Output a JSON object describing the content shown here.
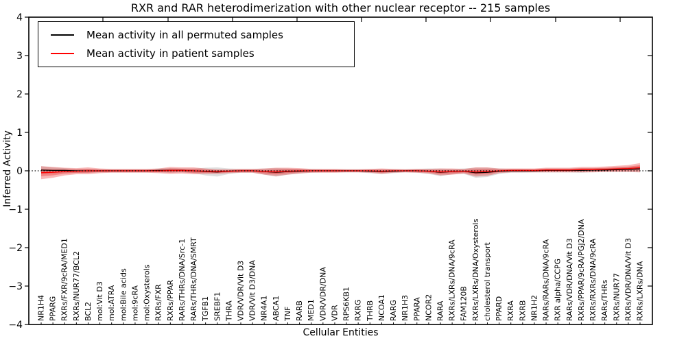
{
  "figure": {
    "background": "#ffffff"
  },
  "chart_data": {
    "type": "line",
    "title": "RXR and RAR heterodimerization with other nuclear receptor -- 215 samples",
    "xlabel": "Cellular Entities",
    "ylabel": "Inferred Activity",
    "ylim": [
      -4,
      4
    ],
    "yticks": [
      -4,
      -3,
      -2,
      -1,
      0,
      1,
      2,
      3,
      4
    ],
    "grid": false,
    "legend_position": "upper left",
    "zero_line": true,
    "categories": [
      "NR1H4",
      "PPARG",
      "RXRs/FXR/9cRA/MED1",
      "RXRs/NUR77/BCL2",
      "BCL2",
      "mol:Vit D3",
      "mol:ATRA",
      "mol:Bile acids",
      "mol:9cRA",
      "mol:Oxysterols",
      "RXRs/FXR",
      "RXRs/PPAR",
      "RARs/THRs/DNA/Src-1",
      "RARs/THRs/DNA/SMRT",
      "TGFB1",
      "SREBF1",
      "THRA",
      "VDR/VDR/Vit D3",
      "VDR/Vit D3/DNA",
      "NR4A1",
      "ABCA1",
      "TNF",
      "RARB",
      "MED1",
      "VDR/VDR/DNA",
      "VDR",
      "RPS6KB1",
      "RXRG",
      "THRB",
      "NCOA1",
      "RARG",
      "NR1H3",
      "PPARA",
      "NCOR2",
      "RARA",
      "RXRs/LXRs/DNA/9cRA",
      "FAM120B",
      "RXRs/LXRs/DNA/Oxysterols",
      "cholesterol transport",
      "PPARD",
      "RXRA",
      "RXRB",
      "NR1H2",
      "RARs/RARs/DNA/9cRA",
      "RXR alpha/CCPG",
      "RARs/VDR/DNA/Vit D3",
      "RXRs/PPAR/9cRA/PGJ2/DNA",
      "RXRs/RXRs/DNA/9cRA",
      "RARs/THRs",
      "RXRs/NUR77",
      "RXRs/VDR/DNA/Vit D3",
      "RXRs/LXRs/DNA"
    ],
    "series": [
      {
        "name": "Mean activity in all permuted samples",
        "line_color": "#000000",
        "band_color": "#808080",
        "band_opacity": 0.25,
        "mean": [
          0.02,
          0.01,
          0.01,
          0,
          0,
          0,
          0,
          0,
          0,
          0,
          0.01,
          0.01,
          0.01,
          0,
          -0.02,
          -0.03,
          -0.01,
          0,
          0,
          -0.02,
          -0.04,
          -0.02,
          -0.01,
          0,
          0,
          0,
          0,
          0,
          -0.01,
          -0.02,
          -0.01,
          0,
          0,
          -0.01,
          -0.04,
          -0.02,
          -0.01,
          -0.05,
          -0.04,
          -0.01,
          0,
          0,
          0,
          0.01,
          0.01,
          0.01,
          0.01,
          0.02,
          0.02,
          0.03,
          0.04,
          0.05
        ],
        "sigma": [
          0.1,
          0.08,
          0.06,
          0.05,
          0.05,
          0.04,
          0.04,
          0.04,
          0.04,
          0.04,
          0.05,
          0.06,
          0.05,
          0.06,
          0.1,
          0.12,
          0.07,
          0.05,
          0.05,
          0.08,
          0.11,
          0.08,
          0.06,
          0.05,
          0.04,
          0.04,
          0.04,
          0.04,
          0.05,
          0.06,
          0.05,
          0.04,
          0.05,
          0.07,
          0.1,
          0.07,
          0.07,
          0.13,
          0.12,
          0.07,
          0.05,
          0.05,
          0.04,
          0.05,
          0.05,
          0.05,
          0.06,
          0.05,
          0.05,
          0.05,
          0.06,
          0.07
        ]
      },
      {
        "name": "Mean activity in patient samples",
        "line_color": "#ff0000",
        "band_color": "#e60000",
        "band_opacity": 0.28,
        "mean": [
          -0.05,
          -0.04,
          -0.02,
          -0.01,
          0,
          0,
          0,
          0,
          0,
          0,
          0,
          0.01,
          0.01,
          0,
          -0.01,
          -0.02,
          -0.01,
          0,
          0,
          -0.02,
          -0.03,
          -0.01,
          0,
          0,
          0,
          0,
          0,
          0,
          0,
          -0.01,
          0,
          0,
          0,
          -0.01,
          -0.03,
          -0.02,
          -0.01,
          -0.03,
          -0.02,
          0,
          0.01,
          0.01,
          0.01,
          0.02,
          0.02,
          0.02,
          0.03,
          0.03,
          0.04,
          0.05,
          0.06,
          0.08
        ],
        "sigma": [
          0.17,
          0.14,
          0.1,
          0.08,
          0.09,
          0.06,
          0.05,
          0.05,
          0.05,
          0.05,
          0.06,
          0.09,
          0.08,
          0.09,
          0.07,
          0.06,
          0.05,
          0.05,
          0.05,
          0.08,
          0.11,
          0.09,
          0.07,
          0.05,
          0.05,
          0.05,
          0.04,
          0.04,
          0.05,
          0.07,
          0.05,
          0.04,
          0.05,
          0.06,
          0.09,
          0.08,
          0.06,
          0.12,
          0.11,
          0.06,
          0.05,
          0.05,
          0.05,
          0.06,
          0.06,
          0.06,
          0.07,
          0.07,
          0.07,
          0.08,
          0.09,
          0.12
        ]
      }
    ]
  }
}
